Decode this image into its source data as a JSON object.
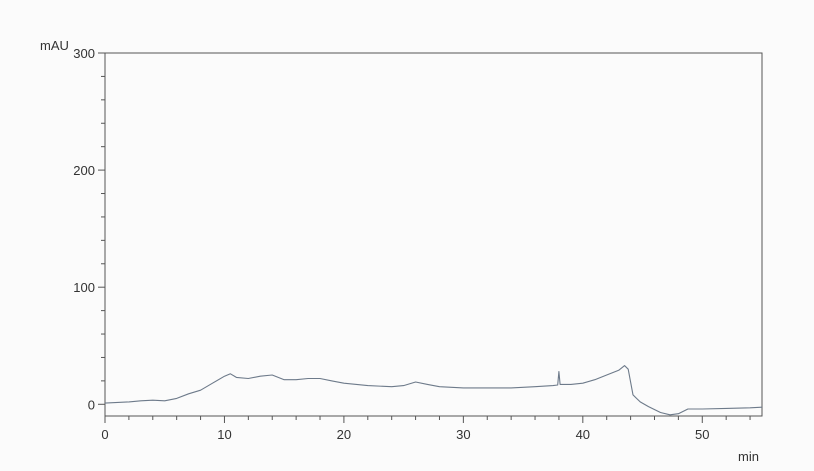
{
  "chart_data": {
    "type": "line",
    "title": "",
    "xlabel": "min",
    "ylabel": "mAU",
    "xlim": [
      0,
      55
    ],
    "ylim": [
      -10,
      300
    ],
    "x_ticks": [
      0,
      10,
      20,
      30,
      40,
      50
    ],
    "y_ticks": [
      0,
      100,
      200,
      300
    ],
    "x_tick_labels": [
      "0",
      "10",
      "20",
      "30",
      "40",
      "50"
    ],
    "y_tick_labels": [
      "0",
      "100",
      "200",
      "300"
    ],
    "grid": false,
    "series": [
      {
        "color": "#6d7a8a",
        "points": [
          [
            0,
            1
          ],
          [
            2,
            2
          ],
          [
            3,
            3
          ],
          [
            4,
            3.5
          ],
          [
            5,
            3
          ],
          [
            6,
            5
          ],
          [
            7,
            9
          ],
          [
            8,
            12
          ],
          [
            9,
            18
          ],
          [
            10,
            24
          ],
          [
            10.5,
            26
          ],
          [
            11,
            23
          ],
          [
            12,
            22
          ],
          [
            13,
            24
          ],
          [
            14,
            25
          ],
          [
            15,
            21
          ],
          [
            16,
            21
          ],
          [
            17,
            22
          ],
          [
            18,
            22
          ],
          [
            19,
            20
          ],
          [
            20,
            18
          ],
          [
            22,
            16
          ],
          [
            24,
            15
          ],
          [
            25,
            16
          ],
          [
            26,
            19
          ],
          [
            27,
            17
          ],
          [
            28,
            15
          ],
          [
            30,
            14
          ],
          [
            32,
            14
          ],
          [
            34,
            14
          ],
          [
            36,
            15
          ],
          [
            37.5,
            16
          ],
          [
            37.9,
            16.5
          ],
          [
            38.0,
            28
          ],
          [
            38.1,
            17
          ],
          [
            39,
            17
          ],
          [
            40,
            18
          ],
          [
            41,
            21
          ],
          [
            42,
            25
          ],
          [
            43,
            29
          ],
          [
            43.5,
            33
          ],
          [
            43.8,
            30
          ],
          [
            44.2,
            8
          ],
          [
            44.8,
            2
          ],
          [
            45.5,
            -2
          ],
          [
            46.5,
            -7
          ],
          [
            47.3,
            -9
          ],
          [
            48,
            -8
          ],
          [
            48.8,
            -4
          ],
          [
            50,
            -4
          ],
          [
            52,
            -3.5
          ],
          [
            54,
            -3
          ],
          [
            55,
            -2.5
          ]
        ]
      }
    ]
  }
}
